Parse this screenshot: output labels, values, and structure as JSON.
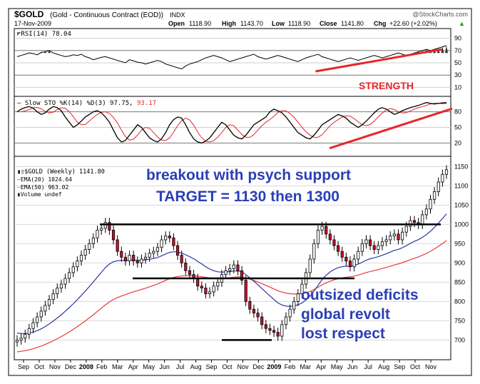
{
  "header": {
    "symbol": "$GOLD",
    "name": "(Gold - Continuous Contract (EOD))",
    "exchange": "INDX",
    "date": "17-Nov-2009",
    "watermark": "@StockCharts.com",
    "open_label": "Open",
    "open": "1118.90",
    "high_label": "High",
    "high": "1143.70",
    "low_label": "Low",
    "low": "1118.90",
    "close_label": "Close",
    "close": "1141.80",
    "chg_label": "Chg",
    "chg": "+22.60 (+2.02%)",
    "chg_arrow": "▲"
  },
  "colors": {
    "accent_red": "#e8262a",
    "annotation_blue": "#2b3fb5",
    "ema20": "#2a36a8",
    "ema50": "#e83a3a",
    "up_candle": "#ffffff",
    "down_candle": "#c8102e"
  },
  "rsi": {
    "label": "RSI(14) 78.04",
    "ticks": [
      "90",
      "70",
      "50",
      "30",
      "10"
    ],
    "annotation": "STRENGTH"
  },
  "sto": {
    "label_prefix": "Slow STO %K(14) %D(3) 97.75,",
    "label_value": "93.17",
    "ticks": [
      "80",
      "50",
      "20"
    ]
  },
  "price": {
    "legend_symbol": "$GOLD (Weekly) 1141.80",
    "legend_ema20": "EMA(20) 1024.64",
    "legend_ema50": "EMA(50) 963.02",
    "legend_volume": "Volume undef",
    "ticks": [
      "1150",
      "1100",
      "1050",
      "1000",
      "950",
      "900",
      "850",
      "800",
      "750",
      "700"
    ],
    "annotation_1": "breakout with psych support",
    "annotation_2": "TARGET = 1130 then 1300",
    "annotation_3": "outsized deficits",
    "annotation_4": "global revolt",
    "annotation_5": "lost respect"
  },
  "x_axis": {
    "labels": [
      "Sep",
      "Oct",
      "Nov",
      "Dec",
      "2008",
      "Feb",
      "Mar",
      "Apr",
      "May",
      "Jun",
      "Jul",
      "Aug",
      "Sep",
      "Oct",
      "Nov",
      "Dec",
      "2009",
      "Feb",
      "Mar",
      "Apr",
      "May",
      "Jun",
      "Jul",
      "Aug",
      "Sep",
      "Oct",
      "Nov"
    ],
    "bold": [
      "2008",
      "2009"
    ]
  },
  "chart_data": {
    "type": "candlestick",
    "interval": "weekly",
    "ylim": [
      660,
      1160
    ],
    "horizontal_lines": [
      1000,
      860,
      700
    ],
    "closes": [
      700,
      705,
      715,
      730,
      745,
      760,
      775,
      790,
      805,
      820,
      835,
      845,
      860,
      875,
      890,
      905,
      920,
      935,
      950,
      965,
      985,
      990,
      1005,
      985,
      960,
      930,
      915,
      905,
      920,
      905,
      900,
      910,
      915,
      925,
      930,
      940,
      960,
      970,
      965,
      945,
      920,
      900,
      880,
      870,
      860,
      840,
      835,
      820,
      825,
      840,
      850,
      870,
      880,
      885,
      895,
      880,
      855,
      800,
      780,
      770,
      760,
      740,
      730,
      725,
      720,
      710,
      740,
      760,
      780,
      800,
      820,
      845,
      875,
      910,
      950,
      985,
      995,
      975,
      960,
      945,
      930,
      915,
      905,
      890,
      910,
      930,
      950,
      960,
      945,
      935,
      945,
      955,
      960,
      970,
      975,
      960,
      980,
      995,
      1010,
      1005,
      1000,
      1025,
      1040,
      1065,
      1085,
      1110,
      1130,
      1141.8
    ],
    "ema20_start": 720,
    "ema20_end": 1024.64,
    "ema50_start": 668,
    "ema50_end": 963.02,
    "rsi_values": [
      60,
      62,
      64,
      66,
      65,
      63,
      67,
      68,
      70,
      66,
      64,
      62,
      60,
      61,
      63,
      62,
      64,
      60,
      58,
      55,
      57,
      59,
      60,
      58,
      56,
      54,
      52,
      50,
      55,
      53,
      51,
      50,
      48,
      50,
      52,
      54,
      52,
      48,
      46,
      44,
      42,
      40,
      45,
      48,
      50,
      52,
      55,
      58,
      60,
      62,
      60,
      58,
      55,
      52,
      54,
      56,
      58,
      60,
      62,
      64,
      60,
      58,
      56,
      58,
      60,
      62,
      60,
      58,
      56,
      54,
      52,
      55,
      58,
      60,
      62,
      64,
      60,
      58,
      56,
      54,
      52,
      54,
      56,
      58,
      56,
      54,
      56,
      58,
      60,
      62,
      60,
      58,
      60,
      62,
      64,
      66,
      64,
      62,
      64,
      66,
      68,
      70,
      72,
      70,
      72,
      74,
      76,
      78.04
    ],
    "sto_values": [
      80,
      85,
      88,
      90,
      87,
      80,
      75,
      78,
      85,
      90,
      88,
      82,
      70,
      60,
      50,
      55,
      62,
      70,
      75,
      80,
      82,
      78,
      70,
      60,
      45,
      30,
      22,
      25,
      35,
      45,
      55,
      50,
      40,
      30,
      25,
      22,
      28,
      40,
      55,
      65,
      70,
      68,
      55,
      40,
      28,
      22,
      20,
      24,
      30,
      40,
      50,
      60,
      55,
      45,
      35,
      30,
      28,
      35,
      45,
      55,
      60,
      65,
      70,
      80,
      85,
      82,
      78,
      70,
      60,
      50,
      40,
      35,
      30,
      28,
      35,
      45,
      55,
      60,
      65,
      70,
      75,
      72,
      68,
      60,
      55,
      50,
      55,
      62,
      70,
      78,
      85,
      88,
      85,
      80,
      75,
      78,
      82,
      85,
      88,
      90,
      92,
      95,
      97.75,
      96,
      95,
      96,
      97,
      97.75
    ],
    "rsi_trend": [
      [
        0.695,
        0.195
      ],
      [
        0.99,
        0.96
      ]
    ],
    "sto_trend": [
      [
        0.53,
        0.0
      ],
      [
        1.0,
        0.95
      ]
    ]
  }
}
